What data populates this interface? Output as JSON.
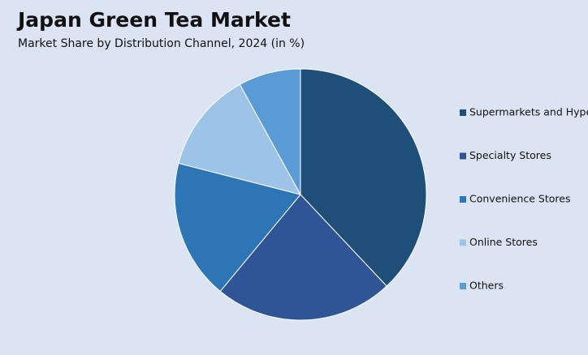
{
  "chart_data": {
    "type": "pie",
    "title": "Japan Green Tea Market",
    "subtitle": "Market Share by Distribution Channel, 2024 (in %)",
    "categories": [
      "Supermarkets and Hypermarkets",
      "Specialty Stores",
      "Convenience Stores",
      "Online Stores",
      "Others"
    ],
    "values": [
      38,
      23,
      18,
      13,
      8
    ],
    "colors": [
      "#1f4e79",
      "#2f5597",
      "#2e75b6",
      "#9dc3e6",
      "#5b9bd5"
    ],
    "legend": "right"
  }
}
